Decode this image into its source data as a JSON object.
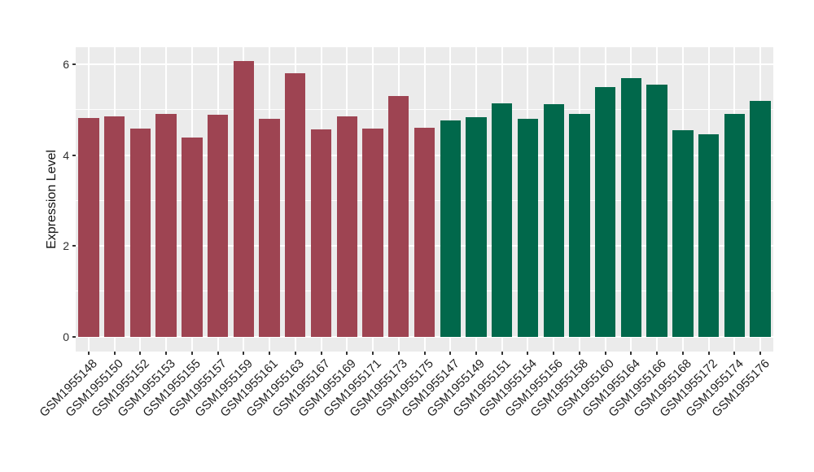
{
  "chart": {
    "panel_background": "#ebebeb",
    "page_background": "#ffffff",
    "grid_color": "#ffffff",
    "axis_text_color": "#2f2f2f",
    "tick_mark_color": "#333333"
  },
  "chart_data": {
    "type": "bar",
    "title": "",
    "xlabel": "",
    "ylabel": "Expression Level",
    "ylim": [
      -0.33,
      6.38
    ],
    "yticks": [
      0,
      2,
      4,
      6
    ],
    "yticks_minor": [
      1,
      3,
      5
    ],
    "grid": "on",
    "legend": "none",
    "x_label_rotation_deg": 45,
    "bar_width_fraction": 0.8,
    "group_colors": {
      "red": "#9e4452",
      "green": "#01684b"
    },
    "bars": [
      {
        "label": "GSM1955148",
        "value": 4.82,
        "group": "red"
      },
      {
        "label": "GSM1955150",
        "value": 4.86,
        "group": "red"
      },
      {
        "label": "GSM1955152",
        "value": 4.59,
        "group": "red"
      },
      {
        "label": "GSM1955153",
        "value": 4.9,
        "group": "red"
      },
      {
        "label": "GSM1955155",
        "value": 4.39,
        "group": "red"
      },
      {
        "label": "GSM1955157",
        "value": 4.89,
        "group": "red"
      },
      {
        "label": "GSM1955159",
        "value": 6.08,
        "group": "red"
      },
      {
        "label": "GSM1955161",
        "value": 4.8,
        "group": "red"
      },
      {
        "label": "GSM1955163",
        "value": 5.81,
        "group": "red"
      },
      {
        "label": "GSM1955167",
        "value": 4.56,
        "group": "red"
      },
      {
        "label": "GSM1955169",
        "value": 4.85,
        "group": "red"
      },
      {
        "label": "GSM1955171",
        "value": 4.59,
        "group": "red"
      },
      {
        "label": "GSM1955173",
        "value": 5.31,
        "group": "red"
      },
      {
        "label": "GSM1955175",
        "value": 4.61,
        "group": "red"
      },
      {
        "label": "GSM1955147",
        "value": 4.77,
        "group": "green"
      },
      {
        "label": "GSM1955149",
        "value": 4.84,
        "group": "green"
      },
      {
        "label": "GSM1955151",
        "value": 5.15,
        "group": "green"
      },
      {
        "label": "GSM1955154",
        "value": 4.8,
        "group": "green"
      },
      {
        "label": "GSM1955156",
        "value": 5.13,
        "group": "green"
      },
      {
        "label": "GSM1955158",
        "value": 4.91,
        "group": "green"
      },
      {
        "label": "GSM1955160",
        "value": 5.5,
        "group": "green"
      },
      {
        "label": "GSM1955164",
        "value": 5.7,
        "group": "green"
      },
      {
        "label": "GSM1955166",
        "value": 5.56,
        "group": "green"
      },
      {
        "label": "GSM1955168",
        "value": 4.55,
        "group": "green"
      },
      {
        "label": "GSM1955172",
        "value": 4.46,
        "group": "green"
      },
      {
        "label": "GSM1955174",
        "value": 4.9,
        "group": "green"
      },
      {
        "label": "GSM1955176",
        "value": 5.19,
        "group": "green"
      }
    ]
  }
}
